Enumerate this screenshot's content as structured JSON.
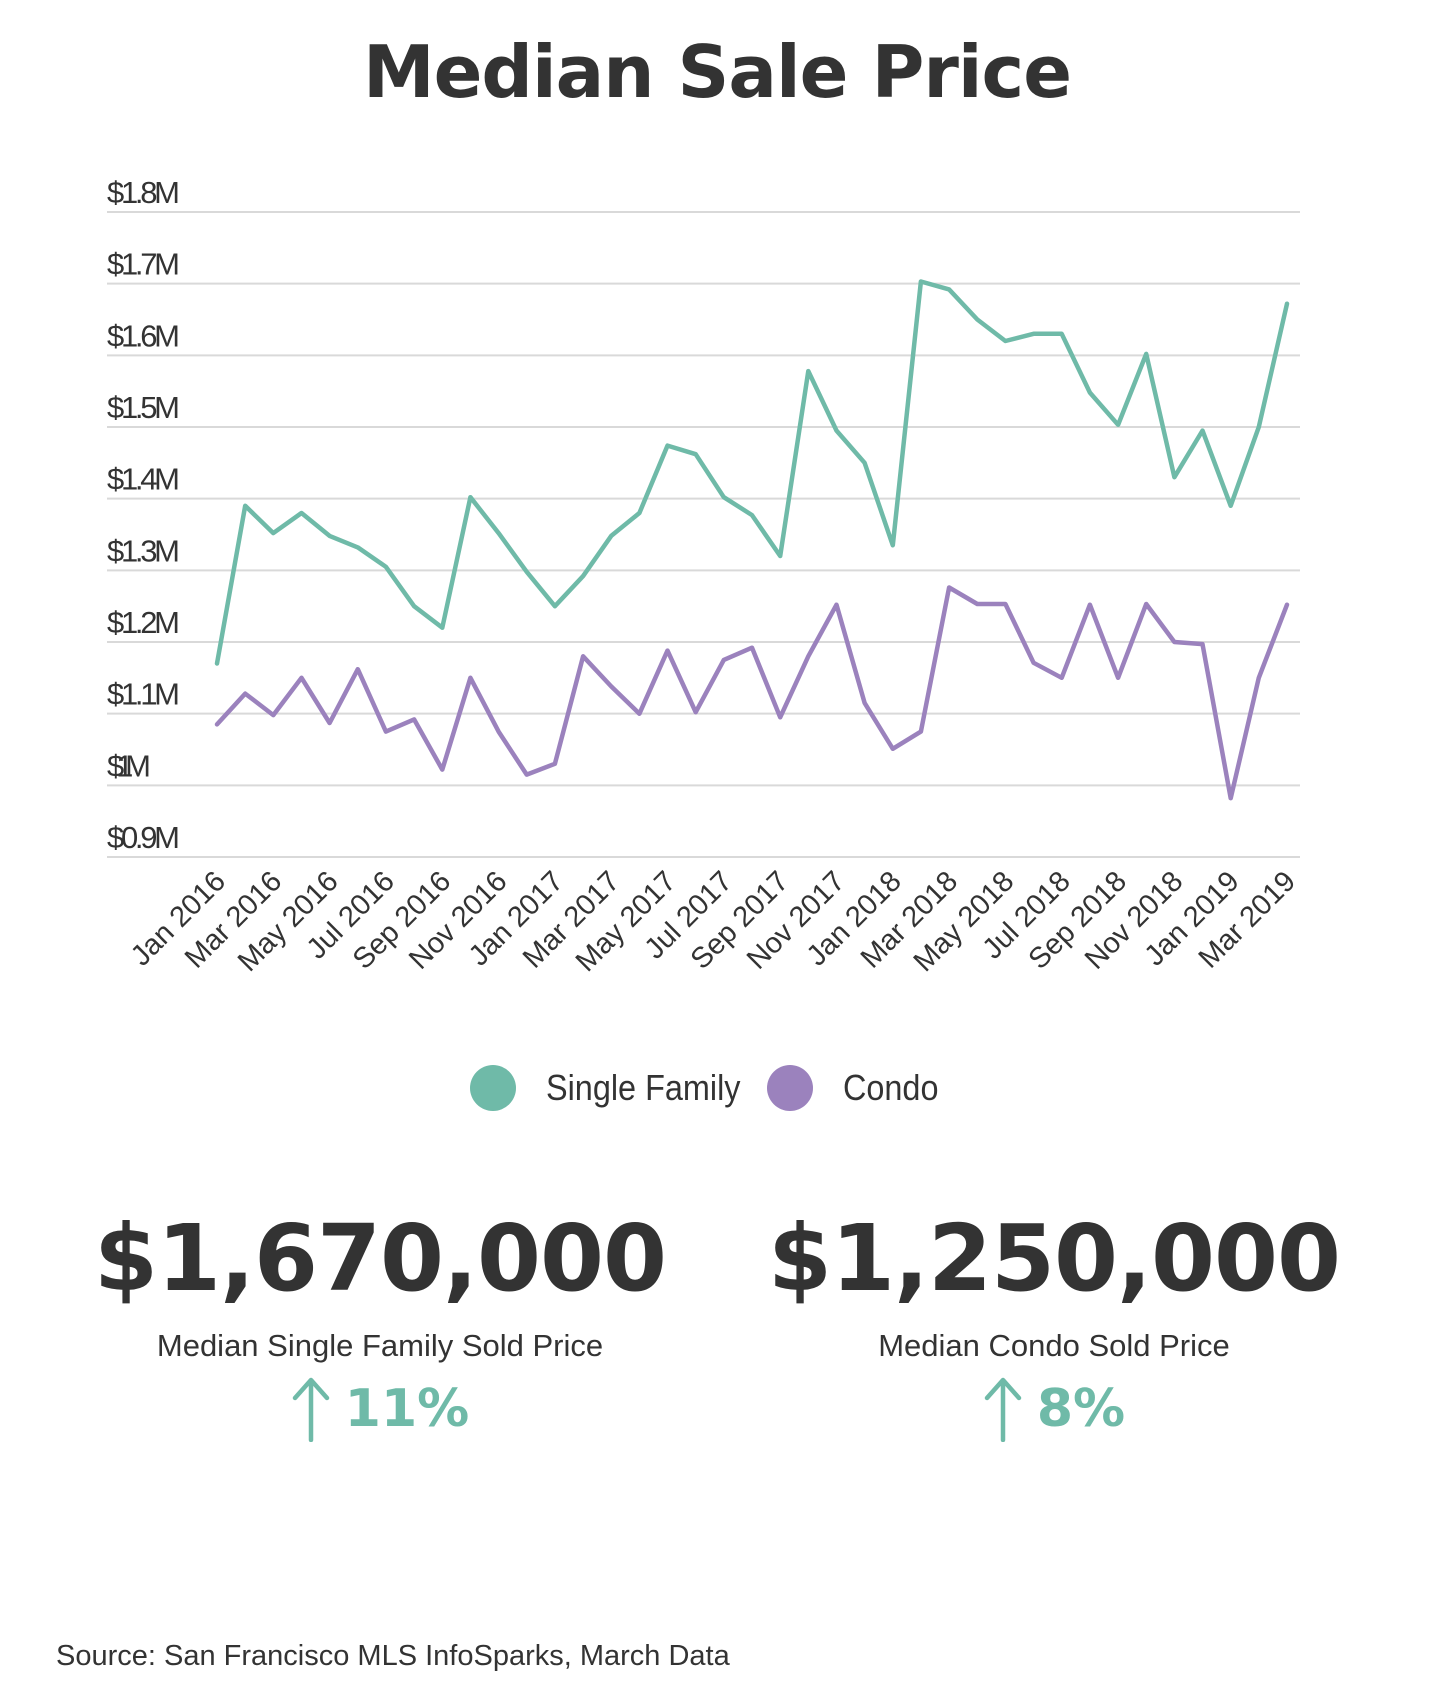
{
  "title": "Median Sale Price",
  "colors": {
    "single_family": "#6fbaa8",
    "condo": "#9b82bd",
    "grid": "#d9d9d9",
    "text": "#333333"
  },
  "chart_data": {
    "type": "line",
    "title": "Median Sale Price",
    "ylim": [
      900000,
      1800000
    ],
    "yticks": [
      900000,
      1000000,
      1100000,
      1200000,
      1300000,
      1400000,
      1500000,
      1600000,
      1700000,
      1800000
    ],
    "ytick_labels": [
      "$0.9M",
      "$1M",
      "$1.1M",
      "$1.2M",
      "$1.3M",
      "$1.4M",
      "$1.5M",
      "$1.6M",
      "$1.7M",
      "$1.8M"
    ],
    "x": [
      "Jan 2016",
      "Feb 2016",
      "Mar 2016",
      "Apr 2016",
      "May 2016",
      "Jun 2016",
      "Jul 2016",
      "Aug 2016",
      "Sep 2016",
      "Oct 2016",
      "Nov 2016",
      "Dec 2016",
      "Jan 2017",
      "Feb 2017",
      "Mar 2017",
      "Apr 2017",
      "May 2017",
      "Jun 2017",
      "Jul 2017",
      "Aug 2017",
      "Sep 2017",
      "Oct 2017",
      "Nov 2017",
      "Dec 2017",
      "Jan 2018",
      "Feb 2018",
      "Mar 2018",
      "Apr 2018",
      "May 2018",
      "Jun 2018",
      "Jul 2018",
      "Aug 2018",
      "Sep 2018",
      "Oct 2018",
      "Nov 2018",
      "Dec 2018",
      "Jan 2019",
      "Feb 2019",
      "Mar 2019"
    ],
    "xtick_labels": [
      "Jan 2016",
      "Mar 2016",
      "May 2016",
      "Jul 2016",
      "Sep 2016",
      "Nov 2016",
      "Jan 2017",
      "Mar 2017",
      "May 2017",
      "Jul 2017",
      "Sep 2017",
      "Nov 2017",
      "Jan 2018",
      "Mar 2018",
      "May 2018",
      "Jul 2018",
      "Sep 2018",
      "Nov 2018",
      "Jan 2019",
      "Mar 2019"
    ],
    "grid": true,
    "legend_position": "bottom-center",
    "series": [
      {
        "name": "Single Family",
        "color": "#6fbaa8",
        "values": [
          1170000,
          1390000,
          1352000,
          1380000,
          1348000,
          1332000,
          1305000,
          1250000,
          1220000,
          1402000,
          1352000,
          1298000,
          1250000,
          1292000,
          1348000,
          1380000,
          1474000,
          1462000,
          1402000,
          1377000,
          1320000,
          1578000,
          1495000,
          1450000,
          1335000,
          1703000,
          1692000,
          1650000,
          1620000,
          1630000,
          1630000,
          1548000,
          1503000,
          1602000,
          1430000,
          1495000,
          1390000,
          1500000,
          1672000
        ]
      },
      {
        "name": "Condo",
        "color": "#9b82bd",
        "values": [
          1085000,
          1128000,
          1098000,
          1150000,
          1087000,
          1162000,
          1075000,
          1092000,
          1022000,
          1150000,
          1075000,
          1015000,
          1030000,
          1180000,
          1138000,
          1100000,
          1188000,
          1102000,
          1175000,
          1192000,
          1095000,
          1180000,
          1252000,
          1115000,
          1051000,
          1075000,
          1276000,
          1253000,
          1253000,
          1171000,
          1150000,
          1252000,
          1150000,
          1253000,
          1200000,
          1197000,
          982000,
          1150000,
          1252000
        ]
      }
    ]
  },
  "legend": [
    {
      "label": "Single Family",
      "color": "#6fbaa8"
    },
    {
      "label": "Condo",
      "color": "#9b82bd"
    }
  ],
  "stats": [
    {
      "value": "$1,670,000",
      "label": "Median Single Family Sold Price",
      "change": "11%"
    },
    {
      "value": "$1,250,000",
      "label": "Median Condo Sold Price",
      "change": "8%"
    }
  ],
  "source": "Source:  San Francisco MLS InfoSparks, March Data"
}
